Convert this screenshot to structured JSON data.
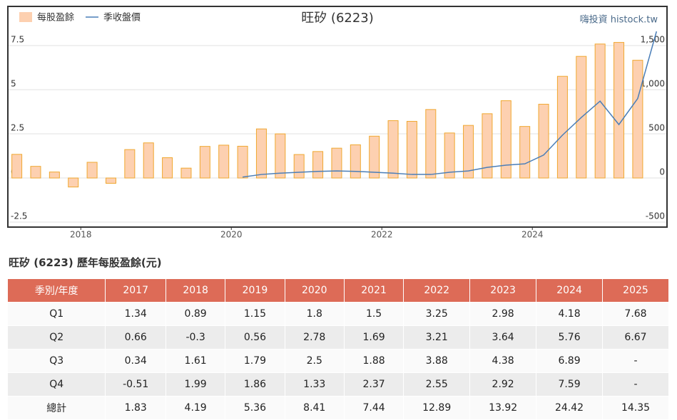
{
  "chart_data": {
    "type": "bar",
    "title": "旺矽 (6223)",
    "source": "嗨投資 histock.tw",
    "x": [
      2017.15,
      2017.4,
      2017.65,
      2017.9,
      2018.15,
      2018.4,
      2018.65,
      2018.9,
      2019.15,
      2019.4,
      2019.65,
      2019.9,
      2020.15,
      2020.4,
      2020.65,
      2020.9,
      2021.15,
      2021.4,
      2021.65,
      2021.9,
      2022.15,
      2022.4,
      2022.65,
      2022.9,
      2023.15,
      2023.4,
      2023.65,
      2023.9,
      2024.15,
      2024.4,
      2024.65,
      2024.9,
      2025.15,
      2025.4,
      2025.65
    ],
    "xlim": [
      2017.04,
      2025.78
    ],
    "xticks": [
      2018,
      2020,
      2022,
      2024
    ],
    "series": [
      {
        "name": "每股盈餘",
        "type": "bar",
        "color": "#fdd0b0",
        "stroke": "#f0a830",
        "values": [
          1.34,
          0.66,
          0.34,
          -0.51,
          0.89,
          -0.3,
          1.61,
          1.99,
          1.15,
          0.56,
          1.79,
          1.86,
          1.8,
          2.78,
          2.5,
          1.33,
          1.5,
          1.69,
          1.88,
          2.37,
          3.25,
          3.21,
          3.88,
          2.55,
          2.98,
          3.64,
          4.38,
          2.92,
          4.18,
          5.76,
          6.89,
          7.59,
          7.68,
          6.67,
          null
        ]
      },
      {
        "name": "季收盤價",
        "type": "line",
        "axis": "y2",
        "color": "#4a7eb8",
        "values": [
          null,
          null,
          null,
          null,
          null,
          null,
          null,
          null,
          null,
          null,
          null,
          null,
          10,
          40,
          55,
          65,
          75,
          80,
          75,
          65,
          55,
          40,
          40,
          65,
          80,
          120,
          145,
          160,
          260,
          485,
          685,
          870,
          605,
          900,
          1660
        ]
      }
    ],
    "ylim": [
      -2.74,
      9.68
    ],
    "yticks": [
      -2.5,
      0,
      2.5,
      5,
      7.5
    ],
    "y2lim": [
      -548,
      1935
    ],
    "y2ticks": [
      -500,
      0,
      500,
      {
        "value": 1000,
        "label": "1,000"
      },
      {
        "value": 1500,
        "label": "1,500"
      }
    ],
    "grid": true
  },
  "table": {
    "title": "旺矽 (6223) 歷年每股盈餘(元)",
    "header": [
      "季別/年度",
      "2017",
      "2018",
      "2019",
      "2020",
      "2021",
      "2022",
      "2023",
      "2024",
      "2025"
    ],
    "rows": [
      [
        "Q1",
        1.34,
        0.89,
        1.15,
        1.8,
        1.5,
        3.25,
        2.98,
        4.18,
        7.68
      ],
      [
        "Q2",
        0.66,
        -0.3,
        0.56,
        2.78,
        1.69,
        3.21,
        3.64,
        5.76,
        6.67
      ],
      [
        "Q3",
        0.34,
        1.61,
        1.79,
        2.5,
        1.88,
        3.88,
        4.38,
        6.89,
        "-"
      ],
      [
        "Q4",
        -0.51,
        1.99,
        1.86,
        1.33,
        2.37,
        2.55,
        2.92,
        7.59,
        "-"
      ],
      [
        "總計",
        1.83,
        4.19,
        5.36,
        8.41,
        7.44,
        12.89,
        13.92,
        24.42,
        14.35
      ]
    ]
  }
}
